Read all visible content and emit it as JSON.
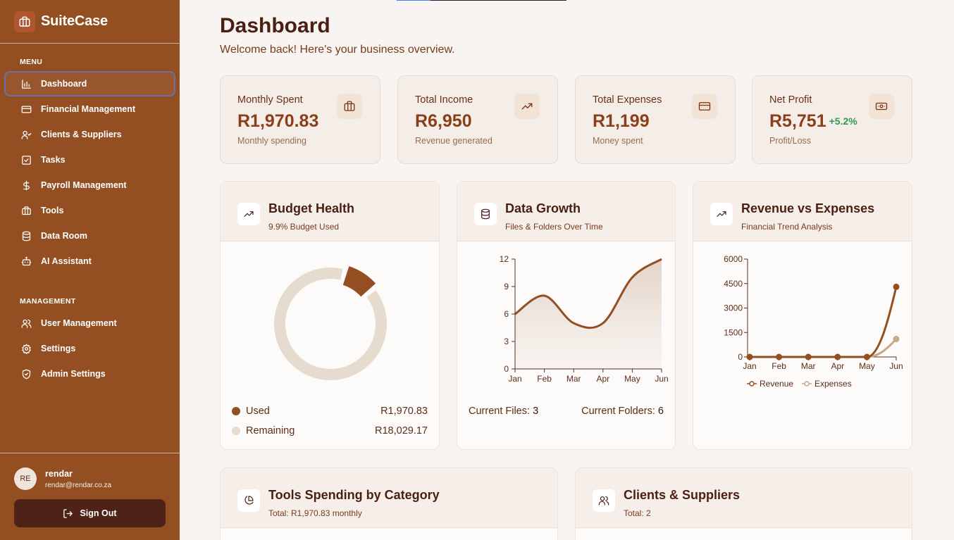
{
  "app": {
    "name": "SuiteCase"
  },
  "sidebar": {
    "menu_label": "MENU",
    "menu_items": [
      {
        "label": "Dashboard"
      },
      {
        "label": "Financial Management"
      },
      {
        "label": "Clients & Suppliers"
      },
      {
        "label": "Tasks"
      },
      {
        "label": "Payroll Management"
      },
      {
        "label": "Tools"
      },
      {
        "label": "Data Room"
      },
      {
        "label": "AI Assistant"
      }
    ],
    "management_label": "MANAGEMENT",
    "management_items": [
      {
        "label": "User Management"
      },
      {
        "label": "Settings"
      },
      {
        "label": "Admin Settings"
      }
    ],
    "user": {
      "initials": "RE",
      "name": "rendar",
      "email": "rendar@rendar.co.za"
    },
    "signout_label": "Sign Out"
  },
  "header": {
    "title": "Dashboard",
    "subtitle": "Welcome back! Here's your business overview."
  },
  "stats": [
    {
      "label": "Monthly Spent",
      "value": "R1,970.83",
      "hint": "Monthly spending",
      "icon": "briefcase-icon"
    },
    {
      "label": "Total Income",
      "value": "R6,950",
      "hint": "Revenue generated",
      "icon": "trending-up-icon"
    },
    {
      "label": "Total Expenses",
      "value": "R1,199",
      "hint": "Money spent",
      "icon": "credit-card-icon"
    },
    {
      "label": "Net Profit",
      "value": "R5,751",
      "change": "+5.2%",
      "hint": "Profit/Loss",
      "icon": "banknote-icon"
    }
  ],
  "budget": {
    "title": "Budget Health",
    "subtitle": "9.9% Budget Used",
    "used_label": "Used",
    "used_value": "R1,970.83",
    "remaining_label": "Remaining",
    "remaining_value": "R18,029.17"
  },
  "data_growth": {
    "title": "Data Growth",
    "subtitle": "Files & Folders Over Time",
    "files_label": "Current Files:",
    "files_value": "3",
    "folders_label": "Current Folders:",
    "folders_value": "6"
  },
  "revenue": {
    "title": "Revenue vs Expenses",
    "subtitle": "Financial Trend Analysis"
  },
  "tools": {
    "title": "Tools Spending by Category",
    "subtitle": "Total: R1,970.83 monthly"
  },
  "clients": {
    "title": "Clients & Suppliers",
    "subtitle": "Total: 2"
  },
  "colors": {
    "sidebar": "#934f22",
    "accent": "#8a3f1a",
    "used": "#934f22",
    "remaining": "#e6dbcf",
    "expenses": "#c4a98a",
    "positive": "#2f9a55"
  },
  "chart_data": [
    {
      "type": "pie",
      "categories": [
        "Used",
        "Remaining"
      ],
      "values": [
        1970.83,
        18029.17
      ]
    },
    {
      "type": "area",
      "categories": [
        "Jan",
        "Feb",
        "Mar",
        "Apr",
        "May",
        "Jun"
      ],
      "values": [
        6,
        8,
        5,
        5,
        10,
        12
      ],
      "ylim": [
        0,
        12
      ],
      "yticks": [
        0,
        3,
        6,
        9,
        12
      ]
    },
    {
      "type": "line",
      "categories": [
        "Jan",
        "Feb",
        "Mar",
        "Apr",
        "May",
        "Jun"
      ],
      "series": [
        {
          "name": "Revenue",
          "values": [
            0,
            0,
            0,
            0,
            0,
            4300
          ]
        },
        {
          "name": "Expenses",
          "values": [
            0,
            0,
            0,
            0,
            0,
            1100
          ]
        }
      ],
      "ylim": [
        0,
        6000
      ],
      "yticks": [
        0,
        1500,
        3000,
        4500,
        6000
      ],
      "legend": "bottom"
    }
  ]
}
